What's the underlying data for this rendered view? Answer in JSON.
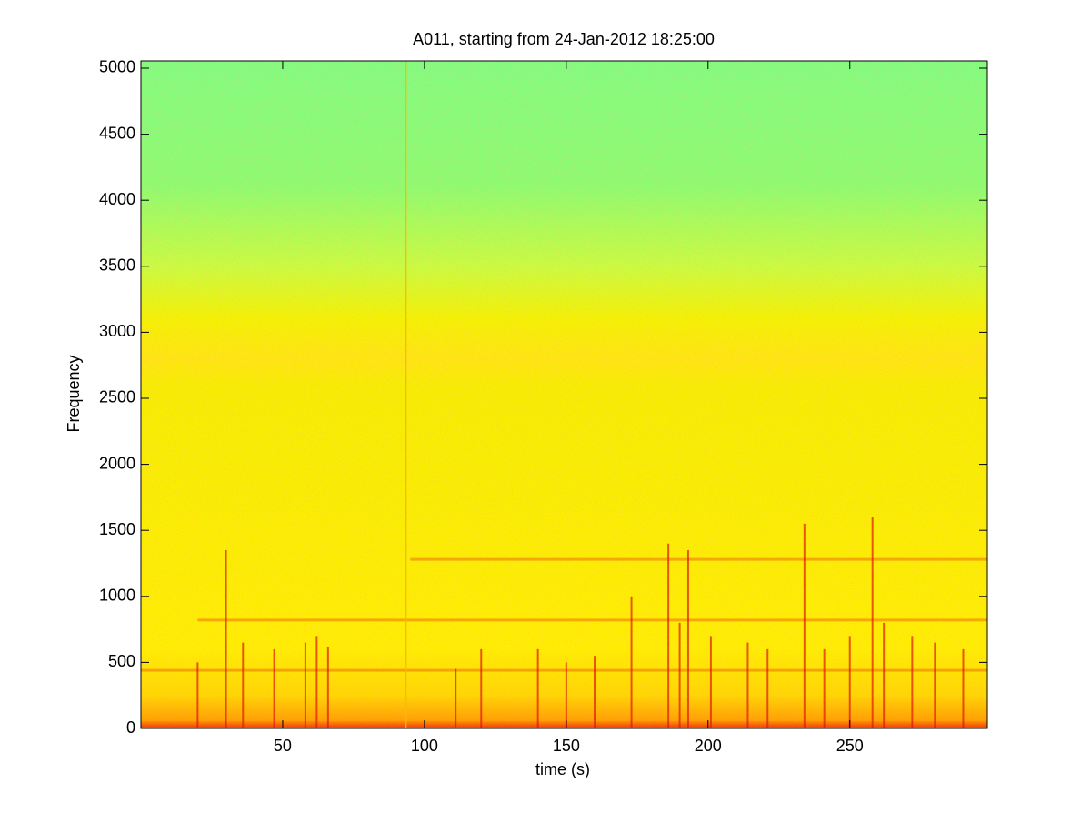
{
  "chart_data": {
    "type": "spectrogram",
    "title": "A011, starting from 24-Jan-2012 18:25:00",
    "x_label": "time (s)",
    "y_label": "Frequency",
    "xlim": [
      0,
      298.5
    ],
    "ylim": [
      0,
      5055
    ],
    "xticks": [
      50,
      100,
      150,
      200,
      250
    ],
    "yticks": [
      0,
      500,
      1000,
      1500,
      2000,
      2500,
      3000,
      3500,
      4000,
      4500,
      5000
    ],
    "colormap": {
      "freq": [
        0,
        60,
        250,
        600,
        2600,
        2800,
        3100,
        3500,
        4100,
        5055
      ],
      "color": [
        "#f02a00",
        "#ffa000",
        "#ffd800",
        "#fff000",
        "#f6f000",
        "#ffe810",
        "#f4f400",
        "#c8ff40",
        "#8cff70",
        "#80ff80"
      ]
    },
    "bands": {
      "freq": [
        1280,
        820,
        440
      ],
      "from": [
        95,
        20,
        0
      ],
      "to": [
        298.5,
        298.5,
        298.5
      ],
      "color": "#f07000"
    },
    "streaks": {
      "time": [
        20,
        30,
        36,
        47,
        58,
        62,
        66,
        93.5,
        111,
        120,
        140,
        150,
        160,
        173,
        186,
        190,
        193,
        201,
        214,
        221,
        234,
        241,
        250,
        258,
        262,
        272,
        280,
        290
      ],
      "top": [
        500,
        1350,
        650,
        600,
        650,
        700,
        620,
        5055,
        450,
        600,
        600,
        500,
        550,
        1000,
        1400,
        800,
        1350,
        700,
        650,
        600,
        1550,
        600,
        700,
        1600,
        800,
        700,
        650,
        600
      ],
      "color": "#e01000"
    }
  }
}
